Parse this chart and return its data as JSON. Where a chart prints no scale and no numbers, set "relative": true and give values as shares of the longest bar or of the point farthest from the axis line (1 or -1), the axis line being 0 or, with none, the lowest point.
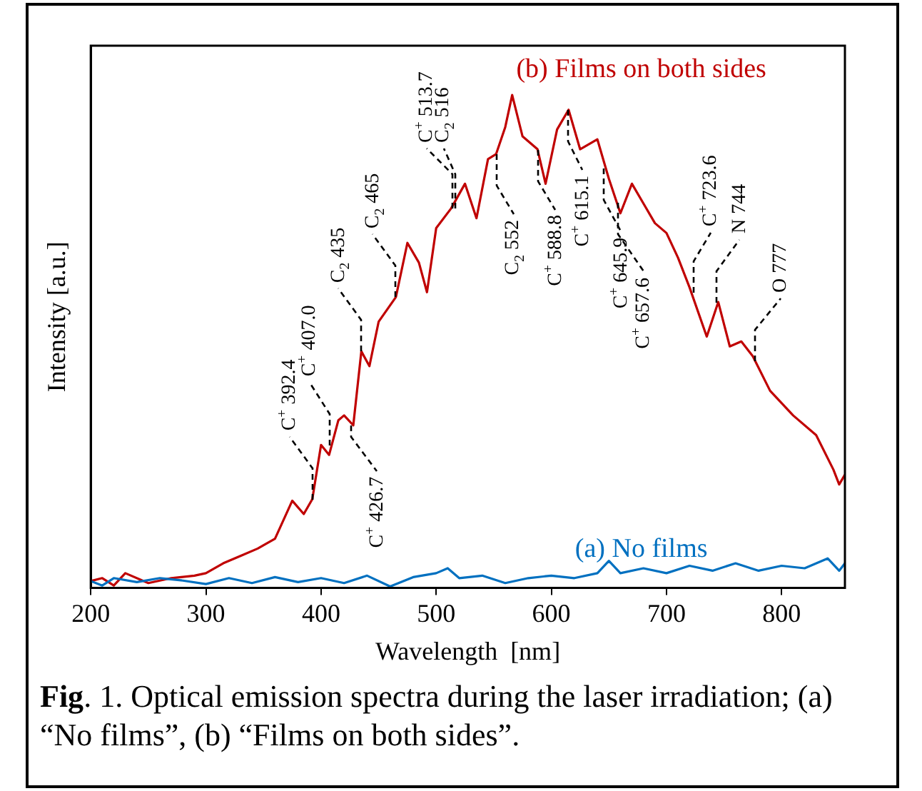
{
  "chart_data": {
    "type": "line",
    "title": "Fig. 1. Optical emission spectra during the laser irradiation; (a) “No films”, (b) “Films on both sides”.",
    "xlabel": "Wavelength  [nm]",
    "ylabel": "Intensity [a.u.]",
    "relative": true,
    "legend": false,
    "grid": false,
    "marker": "none",
    "xlim": [
      200,
      855
    ],
    "xticks": [
      200,
      300,
      400,
      500,
      600,
      700,
      800
    ],
    "series": [
      {
        "name": "(a) No films",
        "color": "#0070c0",
        "x": [
          200,
          210,
          220,
          240,
          260,
          280,
          300,
          320,
          340,
          360,
          380,
          400,
          420,
          440,
          460,
          480,
          500,
          510,
          520,
          540,
          560,
          580,
          600,
          620,
          640,
          650,
          660,
          680,
          700,
          720,
          740,
          760,
          780,
          800,
          820,
          840,
          850,
          855
        ],
        "values": [
          0.014,
          0.005,
          0.02,
          0.012,
          0.02,
          0.015,
          0.008,
          0.02,
          0.01,
          0.022,
          0.012,
          0.02,
          0.01,
          0.025,
          0.003,
          0.022,
          0.03,
          0.04,
          0.02,
          0.025,
          0.01,
          0.02,
          0.025,
          0.02,
          0.03,
          0.055,
          0.03,
          0.04,
          0.03,
          0.045,
          0.035,
          0.05,
          0.035,
          0.045,
          0.04,
          0.06,
          0.035,
          0.05
        ]
      },
      {
        "name": "(b) Films on both sides",
        "color": "#c00000",
        "x": [
          200,
          210,
          220,
          230,
          250,
          270,
          290,
          300,
          315,
          330,
          345,
          360,
          375,
          385,
          392.4,
          400,
          407,
          415,
          420,
          428,
          435,
          442,
          450,
          465,
          475,
          485,
          492,
          500,
          513,
          525,
          535,
          545,
          552,
          560,
          566,
          575,
          588,
          595,
          605,
          615,
          625,
          640,
          650,
          660,
          670,
          680,
          690,
          700,
          710,
          720,
          735,
          745,
          755,
          765,
          775,
          790,
          810,
          830,
          845,
          850,
          855
        ],
        "values": [
          0.014,
          0.02,
          0.005,
          0.03,
          0.01,
          0.02,
          0.025,
          0.03,
          0.05,
          0.065,
          0.08,
          0.1,
          0.177,
          0.15,
          0.18,
          0.29,
          0.27,
          0.34,
          0.35,
          0.33,
          0.48,
          0.45,
          0.54,
          0.59,
          0.7,
          0.66,
          0.6,
          0.73,
          0.77,
          0.82,
          0.75,
          0.87,
          0.88,
          0.935,
          1.0,
          0.916,
          0.89,
          0.82,
          0.93,
          0.97,
          0.89,
          0.91,
          0.83,
          0.76,
          0.82,
          0.78,
          0.74,
          0.72,
          0.67,
          0.61,
          0.51,
          0.58,
          0.49,
          0.5,
          0.47,
          0.4,
          0.35,
          0.31,
          0.24,
          0.21,
          0.23
        ]
      }
    ],
    "annotations": [
      {
        "text": "C$^{+}$ 392.4",
        "x": 392.4,
        "y": 0.18
      },
      {
        "text": "C$^{+}$ 407.0",
        "x": 407.0,
        "y": 0.29
      },
      {
        "text": "C$^{+}$ 426.7",
        "x": 426.7,
        "y": 0.33
      },
      {
        "text": "C$_{2}$ 435",
        "x": 435,
        "y": 0.48
      },
      {
        "text": "C$_{2}$ 465",
        "x": 465,
        "y": 0.59
      },
      {
        "text": "C$^{+}$ 513.7",
        "x": 513.7,
        "y": 0.77
      },
      {
        "text": "C$_{2}$ 516",
        "x": 516,
        "y": 0.77
      },
      {
        "text": "C$_{2}$ 552",
        "x": 552,
        "y": 0.88
      },
      {
        "text": "C$^{+}$ 588.8",
        "x": 588.8,
        "y": 0.89
      },
      {
        "text": "C$^{+}$ 615.1",
        "x": 615.1,
        "y": 0.97
      },
      {
        "text": "C$^{+}$ 645.9",
        "x": 645.9,
        "y": 0.85
      },
      {
        "text": "C$^{+}$ 657.6",
        "x": 657.6,
        "y": 0.78
      },
      {
        "text": "C$^{+}$ 723.6",
        "x": 723.6,
        "y": 0.6
      },
      {
        "text": "N 744",
        "x": 744,
        "y": 0.58
      },
      {
        "text": "O 777",
        "x": 777,
        "y": 0.46
      }
    ]
  }
}
